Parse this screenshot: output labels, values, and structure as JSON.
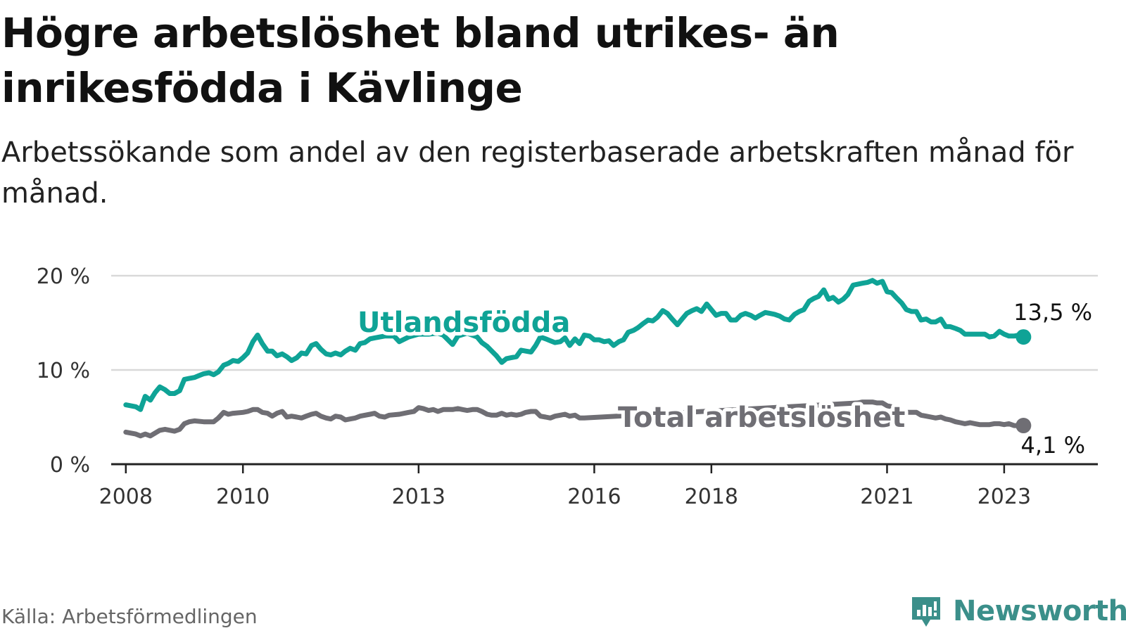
{
  "header": {
    "title": "Högre arbetslöshet bland utrikes- än inrikesfödda i Kävlinge",
    "subtitle": "Arbetssökande som andel av den registerbaserade arbetskraften månad för månad."
  },
  "footer": {
    "source": "Källa: Arbetsförmedlingen",
    "brand": "Newsworthy"
  },
  "colors": {
    "utlandsfodda": "#0fa396",
    "total": "#6f6e74",
    "grid": "#d9d9d9",
    "axis": "#222222",
    "brand": "#3b8f8a"
  },
  "chart_data": {
    "type": "line",
    "title": "Högre arbetslöshet bland utrikes- än inrikesfödda i Kävlinge",
    "xlabel": "",
    "ylabel": "",
    "xlim": [
      2007.75,
      2024.6
    ],
    "ylim": [
      0,
      20
    ],
    "yticks": [
      0,
      10,
      20
    ],
    "ytick_labels": [
      "0 %",
      "10 %",
      "20 %"
    ],
    "xticks": [
      2008,
      2010,
      2013,
      2016,
      2018,
      2021,
      2023
    ],
    "xtick_labels": [
      "2008",
      "2010",
      "2013",
      "2016",
      "2018",
      "2021",
      "2023"
    ],
    "grid": true,
    "series": [
      {
        "name": "Utlandsfödda",
        "label": "Utlandsfödda",
        "end_label": "13,5 %",
        "points": [
          [
            2008.0,
            6.3
          ],
          [
            2008.17,
            6.1
          ],
          [
            2008.25,
            5.8
          ],
          [
            2008.33,
            7.2
          ],
          [
            2008.42,
            6.8
          ],
          [
            2008.5,
            7.6
          ],
          [
            2008.58,
            8.2
          ],
          [
            2008.67,
            7.9
          ],
          [
            2008.75,
            7.5
          ],
          [
            2008.83,
            7.5
          ],
          [
            2008.92,
            7.8
          ],
          [
            2009.0,
            9.0
          ],
          [
            2009.08,
            9.1
          ],
          [
            2009.17,
            9.2
          ],
          [
            2009.25,
            9.4
          ],
          [
            2009.33,
            9.6
          ],
          [
            2009.42,
            9.7
          ],
          [
            2009.5,
            9.5
          ],
          [
            2009.58,
            9.8
          ],
          [
            2009.67,
            10.5
          ],
          [
            2009.75,
            10.7
          ],
          [
            2009.83,
            11.0
          ],
          [
            2009.92,
            10.9
          ],
          [
            2010.0,
            11.3
          ],
          [
            2010.08,
            11.8
          ],
          [
            2010.17,
            13.0
          ],
          [
            2010.25,
            13.7
          ],
          [
            2010.33,
            12.8
          ],
          [
            2010.42,
            12.0
          ],
          [
            2010.5,
            12.0
          ],
          [
            2010.58,
            11.5
          ],
          [
            2010.67,
            11.7
          ],
          [
            2010.75,
            11.4
          ],
          [
            2010.83,
            11.0
          ],
          [
            2010.92,
            11.3
          ],
          [
            2011.0,
            11.8
          ],
          [
            2011.08,
            11.7
          ],
          [
            2011.17,
            12.6
          ],
          [
            2011.25,
            12.8
          ],
          [
            2011.33,
            12.2
          ],
          [
            2011.42,
            11.7
          ],
          [
            2011.5,
            11.6
          ],
          [
            2011.58,
            11.8
          ],
          [
            2011.67,
            11.6
          ],
          [
            2011.75,
            12.0
          ],
          [
            2011.83,
            12.3
          ],
          [
            2011.92,
            12.1
          ],
          [
            2012.0,
            12.8
          ],
          [
            2012.08,
            12.9
          ],
          [
            2012.17,
            13.3
          ],
          [
            2012.25,
            13.4
          ],
          [
            2012.42,
            13.6
          ],
          [
            2012.58,
            13.6
          ],
          [
            2012.67,
            13.0
          ],
          [
            2012.83,
            13.5
          ],
          [
            2013.0,
            13.8
          ],
          [
            2013.17,
            13.8
          ],
          [
            2013.33,
            13.9
          ],
          [
            2013.42,
            13.7
          ],
          [
            2013.5,
            13.2
          ],
          [
            2013.58,
            12.7
          ],
          [
            2013.67,
            13.6
          ],
          [
            2013.83,
            13.9
          ],
          [
            2014.0,
            13.5
          ],
          [
            2014.08,
            12.9
          ],
          [
            2014.17,
            12.5
          ],
          [
            2014.25,
            12.0
          ],
          [
            2014.33,
            11.5
          ],
          [
            2014.42,
            10.8
          ],
          [
            2014.5,
            11.2
          ],
          [
            2014.58,
            11.3
          ],
          [
            2014.67,
            11.4
          ],
          [
            2014.75,
            12.1
          ],
          [
            2014.83,
            12.0
          ],
          [
            2014.92,
            11.9
          ],
          [
            2015.0,
            12.6
          ],
          [
            2015.08,
            13.5
          ],
          [
            2015.17,
            13.3
          ],
          [
            2015.25,
            13.1
          ],
          [
            2015.33,
            12.9
          ],
          [
            2015.42,
            13.0
          ],
          [
            2015.5,
            13.4
          ],
          [
            2015.58,
            12.6
          ],
          [
            2015.67,
            13.3
          ],
          [
            2015.75,
            12.8
          ],
          [
            2015.83,
            13.7
          ],
          [
            2015.92,
            13.6
          ],
          [
            2016.0,
            13.2
          ],
          [
            2016.08,
            13.2
          ],
          [
            2016.17,
            13.0
          ],
          [
            2016.25,
            13.1
          ],
          [
            2016.33,
            12.6
          ],
          [
            2016.42,
            13.0
          ],
          [
            2016.5,
            13.2
          ],
          [
            2016.58,
            14.0
          ],
          [
            2016.67,
            14.2
          ],
          [
            2016.75,
            14.5
          ],
          [
            2016.83,
            14.9
          ],
          [
            2016.92,
            15.3
          ],
          [
            2017.0,
            15.2
          ],
          [
            2017.08,
            15.6
          ],
          [
            2017.17,
            16.3
          ],
          [
            2017.25,
            16.0
          ],
          [
            2017.33,
            15.4
          ],
          [
            2017.42,
            14.8
          ],
          [
            2017.5,
            15.4
          ],
          [
            2017.58,
            16.0
          ],
          [
            2017.67,
            16.3
          ],
          [
            2017.75,
            16.5
          ],
          [
            2017.83,
            16.2
          ],
          [
            2017.92,
            17.0
          ],
          [
            2018.0,
            16.4
          ],
          [
            2018.08,
            15.8
          ],
          [
            2018.17,
            16.0
          ],
          [
            2018.25,
            16.0
          ],
          [
            2018.33,
            15.3
          ],
          [
            2018.42,
            15.3
          ],
          [
            2018.5,
            15.8
          ],
          [
            2018.58,
            16.0
          ],
          [
            2018.67,
            15.8
          ],
          [
            2018.75,
            15.5
          ],
          [
            2018.83,
            15.8
          ],
          [
            2018.92,
            16.1
          ],
          [
            2019.0,
            16.0
          ],
          [
            2019.08,
            15.9
          ],
          [
            2019.17,
            15.7
          ],
          [
            2019.25,
            15.4
          ],
          [
            2019.33,
            15.3
          ],
          [
            2019.42,
            15.9
          ],
          [
            2019.5,
            16.2
          ],
          [
            2019.58,
            16.4
          ],
          [
            2019.67,
            17.3
          ],
          [
            2019.75,
            17.6
          ],
          [
            2019.83,
            17.8
          ],
          [
            2019.92,
            18.5
          ],
          [
            2020.0,
            17.5
          ],
          [
            2020.08,
            17.7
          ],
          [
            2020.17,
            17.2
          ],
          [
            2020.25,
            17.5
          ],
          [
            2020.33,
            18.0
          ],
          [
            2020.42,
            19.0
          ],
          [
            2020.5,
            19.1
          ],
          [
            2020.58,
            19.2
          ],
          [
            2020.67,
            19.3
          ],
          [
            2020.75,
            19.5
          ],
          [
            2020.83,
            19.2
          ],
          [
            2020.92,
            19.4
          ],
          [
            2021.0,
            18.3
          ],
          [
            2021.08,
            18.2
          ],
          [
            2021.17,
            17.6
          ],
          [
            2021.25,
            17.1
          ],
          [
            2021.33,
            16.4
          ],
          [
            2021.42,
            16.2
          ],
          [
            2021.5,
            16.2
          ],
          [
            2021.58,
            15.3
          ],
          [
            2021.67,
            15.4
          ],
          [
            2021.75,
            15.1
          ],
          [
            2021.83,
            15.1
          ],
          [
            2021.92,
            15.4
          ],
          [
            2022.0,
            14.6
          ],
          [
            2022.08,
            14.6
          ],
          [
            2022.17,
            14.4
          ],
          [
            2022.25,
            14.2
          ],
          [
            2022.33,
            13.8
          ],
          [
            2022.5,
            13.8
          ],
          [
            2022.67,
            13.8
          ],
          [
            2022.75,
            13.5
          ],
          [
            2022.83,
            13.6
          ],
          [
            2022.92,
            14.1
          ],
          [
            2023.0,
            13.8
          ],
          [
            2023.08,
            13.6
          ],
          [
            2023.17,
            13.6
          ],
          [
            2023.25,
            13.7
          ],
          [
            2023.33,
            13.5
          ]
        ]
      },
      {
        "name": "Total arbetslöshet",
        "label": "Total arbetslöshet",
        "end_label": "4,1 %",
        "points": [
          [
            2008.0,
            3.4
          ],
          [
            2008.17,
            3.2
          ],
          [
            2008.25,
            3.0
          ],
          [
            2008.33,
            3.2
          ],
          [
            2008.42,
            3.0
          ],
          [
            2008.5,
            3.3
          ],
          [
            2008.58,
            3.6
          ],
          [
            2008.67,
            3.7
          ],
          [
            2008.83,
            3.5
          ],
          [
            2008.92,
            3.7
          ],
          [
            2009.0,
            4.3
          ],
          [
            2009.08,
            4.5
          ],
          [
            2009.17,
            4.6
          ],
          [
            2009.33,
            4.5
          ],
          [
            2009.5,
            4.5
          ],
          [
            2009.58,
            4.9
          ],
          [
            2009.67,
            5.5
          ],
          [
            2009.75,
            5.3
          ],
          [
            2009.83,
            5.4
          ],
          [
            2010.0,
            5.5
          ],
          [
            2010.08,
            5.6
          ],
          [
            2010.17,
            5.8
          ],
          [
            2010.25,
            5.8
          ],
          [
            2010.33,
            5.5
          ],
          [
            2010.42,
            5.4
          ],
          [
            2010.5,
            5.1
          ],
          [
            2010.58,
            5.4
          ],
          [
            2010.67,
            5.6
          ],
          [
            2010.75,
            5.0
          ],
          [
            2010.83,
            5.1
          ],
          [
            2010.92,
            5.0
          ],
          [
            2011.0,
            4.9
          ],
          [
            2011.08,
            5.1
          ],
          [
            2011.17,
            5.3
          ],
          [
            2011.25,
            5.4
          ],
          [
            2011.33,
            5.1
          ],
          [
            2011.42,
            4.9
          ],
          [
            2011.5,
            4.8
          ],
          [
            2011.58,
            5.1
          ],
          [
            2011.67,
            5.0
          ],
          [
            2011.75,
            4.7
          ],
          [
            2011.83,
            4.8
          ],
          [
            2011.92,
            4.9
          ],
          [
            2012.0,
            5.1
          ],
          [
            2012.17,
            5.3
          ],
          [
            2012.25,
            5.4
          ],
          [
            2012.33,
            5.1
          ],
          [
            2012.42,
            5.0
          ],
          [
            2012.5,
            5.2
          ],
          [
            2012.67,
            5.3
          ],
          [
            2012.83,
            5.5
          ],
          [
            2012.92,
            5.6
          ],
          [
            2013.0,
            6.0
          ],
          [
            2013.08,
            5.9
          ],
          [
            2013.17,
            5.7
          ],
          [
            2013.25,
            5.8
          ],
          [
            2013.33,
            5.6
          ],
          [
            2013.42,
            5.8
          ],
          [
            2013.58,
            5.8
          ],
          [
            2013.67,
            5.9
          ],
          [
            2013.75,
            5.8
          ],
          [
            2013.83,
            5.7
          ],
          [
            2013.92,
            5.8
          ],
          [
            2014.0,
            5.8
          ],
          [
            2014.08,
            5.6
          ],
          [
            2014.17,
            5.3
          ],
          [
            2014.25,
            5.2
          ],
          [
            2014.33,
            5.2
          ],
          [
            2014.42,
            5.4
          ],
          [
            2014.5,
            5.2
          ],
          [
            2014.58,
            5.3
          ],
          [
            2014.67,
            5.2
          ],
          [
            2014.75,
            5.3
          ],
          [
            2014.83,
            5.5
          ],
          [
            2014.92,
            5.6
          ],
          [
            2015.0,
            5.6
          ],
          [
            2015.08,
            5.1
          ],
          [
            2015.17,
            5.0
          ],
          [
            2015.25,
            4.9
          ],
          [
            2015.33,
            5.1
          ],
          [
            2015.42,
            5.2
          ],
          [
            2015.5,
            5.3
          ],
          [
            2015.58,
            5.1
          ],
          [
            2015.67,
            5.2
          ],
          [
            2015.75,
            4.9
          ],
          [
            2015.83,
            4.9
          ],
          [
            2020.5,
            6.5
          ],
          [
            2020.58,
            6.6
          ],
          [
            2020.67,
            6.6
          ],
          [
            2020.75,
            6.6
          ],
          [
            2020.83,
            6.5
          ],
          [
            2020.92,
            6.5
          ],
          [
            2021.0,
            6.2
          ],
          [
            2021.08,
            6.1
          ],
          [
            2021.17,
            5.9
          ],
          [
            2021.25,
            5.6
          ],
          [
            2021.33,
            5.5
          ],
          [
            2021.5,
            5.5
          ],
          [
            2021.58,
            5.2
          ],
          [
            2021.67,
            5.1
          ],
          [
            2021.75,
            5.0
          ],
          [
            2021.83,
            4.9
          ],
          [
            2021.92,
            5.0
          ],
          [
            2022.0,
            4.8
          ],
          [
            2022.08,
            4.7
          ],
          [
            2022.17,
            4.5
          ],
          [
            2022.25,
            4.4
          ],
          [
            2022.33,
            4.3
          ],
          [
            2022.42,
            4.4
          ],
          [
            2022.5,
            4.3
          ],
          [
            2022.58,
            4.2
          ],
          [
            2022.75,
            4.2
          ],
          [
            2022.83,
            4.3
          ],
          [
            2022.92,
            4.3
          ],
          [
            2023.0,
            4.2
          ],
          [
            2023.08,
            4.3
          ],
          [
            2023.17,
            4.1
          ],
          [
            2023.33,
            4.1
          ]
        ]
      }
    ]
  }
}
